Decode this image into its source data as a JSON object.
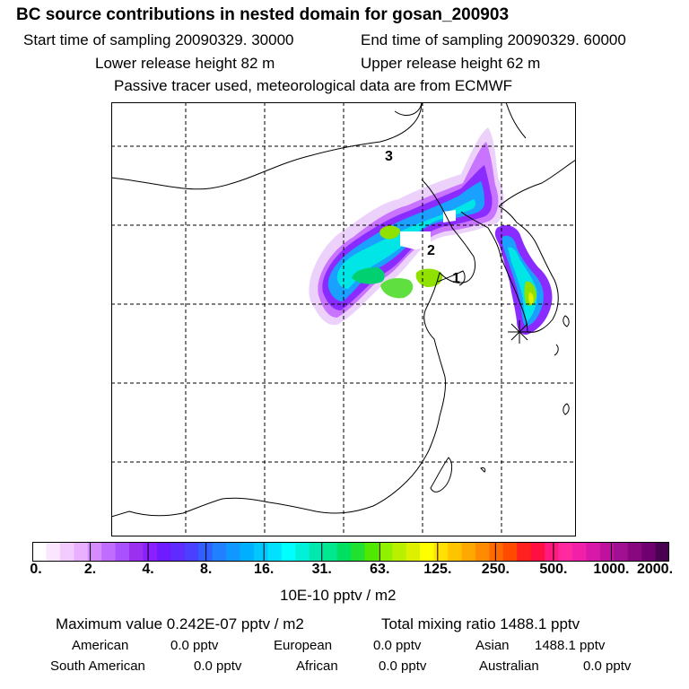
{
  "header": {
    "title": "BC  source contributions in nested domain for gosan_200903",
    "start_time": "Start time of sampling 20090329. 30000",
    "end_time": "End time of sampling 20090329. 60000",
    "lower_height": "Lower release height   82 m",
    "upper_height": "Upper release height   62 m",
    "tracer_note": "Passive tracer used, meteorological data are from ECMWF"
  },
  "map": {
    "markers": [
      {
        "label": "1"
      },
      {
        "label": "2"
      },
      {
        "label": "3"
      }
    ],
    "receptor_icon": "star-icon",
    "plume_colors": [
      "#e8c8f8",
      "#c060ff",
      "#8000ff",
      "#3030ff",
      "#2090ff",
      "#00e6e6",
      "#00d070",
      "#90e000",
      "#e0f000"
    ]
  },
  "colorbar": {
    "unit": "10E-10 pptv / m2",
    "ticks": [
      "0.",
      "2.",
      "4.",
      "8.",
      "16.",
      "31.",
      "63.",
      "125.",
      "250.",
      "500.",
      "1000.",
      "2000."
    ],
    "colors": [
      "#ffffff",
      "#fbe6ff",
      "#f3ccff",
      "#e9b0ff",
      "#d58cff",
      "#c06cff",
      "#a950ff",
      "#9b30f0",
      "#8a20ff",
      "#6e1cff",
      "#5f2cff",
      "#4b40ff",
      "#3060ff",
      "#2080ff",
      "#1098ff",
      "#00b0ff",
      "#00c8ff",
      "#00e0ff",
      "#00ffff",
      "#00f0d8",
      "#00e8b0",
      "#00e890",
      "#00e060",
      "#20e030",
      "#50e800",
      "#90f000",
      "#b8f000",
      "#ddf000",
      "#ffff00",
      "#ffe000",
      "#ffc400",
      "#ffa800",
      "#ff8c00",
      "#ff6a00",
      "#ff4a00",
      "#ff2020",
      "#ff1040",
      "#ff1a80",
      "#ff2aa0",
      "#f020a8",
      "#d818a8",
      "#c010a0",
      "#a01090",
      "#880880",
      "#700070",
      "#4a0050"
    ]
  },
  "summary": {
    "max_label": "Maximum value  0.242E-07 pptv / m2",
    "total_label": "Total mixing ratio    1488.1 pptv",
    "rows": [
      [
        {
          "name": "American",
          "value": "0.0 pptv"
        },
        {
          "name": "European",
          "value": "0.0 pptv"
        },
        {
          "name": "Asian",
          "value": "1488.1 pptv"
        }
      ],
      [
        {
          "name": "South American",
          "value": "0.0 pptv"
        },
        {
          "name": "African",
          "value": "0.0 pptv"
        },
        {
          "name": "Australian",
          "value": "0.0 pptv"
        }
      ]
    ]
  }
}
